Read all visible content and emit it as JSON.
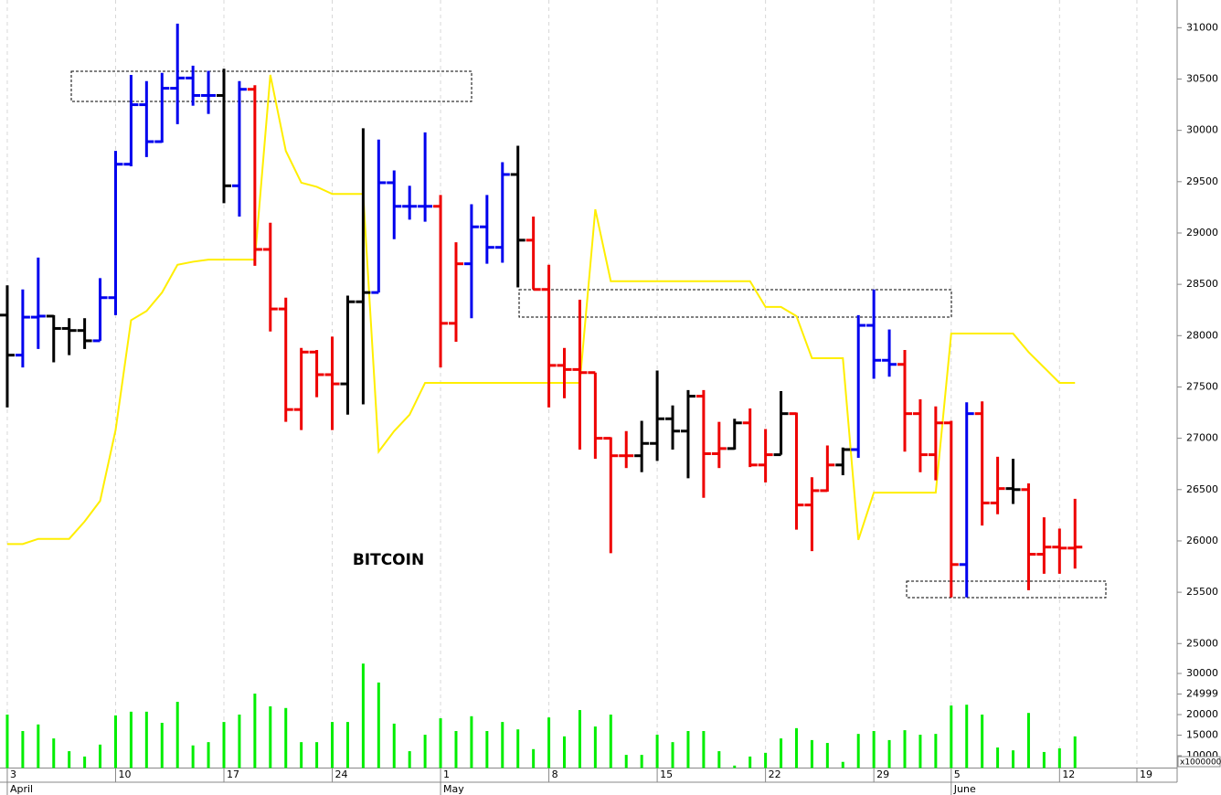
{
  "chart_data": {
    "type": "ohlc",
    "title": "BITCOIN",
    "open": [
      28200,
      27810,
      28180,
      28190,
      28070,
      28050,
      27950,
      28370,
      29670,
      30250,
      29890,
      30410,
      30510,
      30340,
      30340,
      29460,
      30400,
      28840,
      28260,
      27280,
      27840,
      27620,
      27530,
      28330,
      28420,
      29490,
      29260,
      29260,
      29260,
      28120,
      28700,
      29060,
      28860,
      29570,
      28930,
      28450,
      27710,
      27670,
      27640,
      27000,
      26830,
      26830,
      26950,
      27190,
      27070,
      27410,
      26850,
      26900,
      27150,
      26740,
      26840,
      27240,
      26350,
      26490,
      26740,
      26890,
      28100,
      27760,
      27720,
      27240,
      26840,
      27150,
      25770,
      27240,
      26370,
      26510,
      26500,
      25870,
      25940,
      25930
    ],
    "high": [
      28490,
      28450,
      28760,
      28200,
      28170,
      28170,
      28560,
      29800,
      30540,
      30480,
      30560,
      31040,
      30630,
      30580,
      30600,
      30480,
      30440,
      29100,
      28370,
      27880,
      27860,
      27990,
      28390,
      30020,
      29910,
      29610,
      29460,
      29980,
      29370,
      28910,
      29280,
      29370,
      29690,
      29850,
      29160,
      28690,
      27880,
      28350,
      27640,
      27010,
      27070,
      27170,
      27660,
      27320,
      27470,
      27470,
      27160,
      27190,
      27290,
      27090,
      27460,
      27250,
      26620,
      26930,
      26910,
      28200,
      28450,
      28060,
      27860,
      27380,
      27310,
      27170,
      27350,
      27360,
      26820,
      26800,
      26560,
      26230,
      26120,
      26410
    ],
    "low": [
      27300,
      27690,
      27870,
      27740,
      27810,
      27870,
      27950,
      28200,
      29650,
      29740,
      29880,
      30060,
      30240,
      30160,
      29290,
      29160,
      28680,
      28040,
      27160,
      27080,
      27400,
      27080,
      27230,
      27330,
      28420,
      28940,
      29130,
      29110,
      27690,
      27940,
      28170,
      28700,
      28710,
      28470,
      28450,
      27300,
      27390,
      26890,
      26800,
      25880,
      26710,
      26670,
      26780,
      26890,
      26610,
      26420,
      26710,
      26890,
      26720,
      26570,
      26840,
      26110,
      25900,
      26480,
      26640,
      26810,
      27580,
      27600,
      26870,
      26670,
      26590,
      25450,
      25450,
      26150,
      26260,
      26360,
      25520,
      25680,
      25680,
      25730
    ],
    "close": [
      27810,
      28180,
      28190,
      28070,
      28050,
      27950,
      28370,
      29670,
      30250,
      29890,
      30410,
      30510,
      30340,
      30340,
      29460,
      30400,
      28840,
      28260,
      27280,
      27840,
      27620,
      27530,
      28330,
      28420,
      29490,
      29260,
      29260,
      29260,
      28120,
      28700,
      29060,
      28860,
      29570,
      28930,
      28450,
      27710,
      27670,
      27640,
      27000,
      26830,
      26830,
      26950,
      27190,
      27070,
      27410,
      26850,
      26900,
      27150,
      26740,
      26840,
      27240,
      26350,
      26490,
      26740,
      26890,
      28100,
      27760,
      27720,
      27240,
      26840,
      27150,
      25770,
      27240,
      26370,
      26510,
      26500,
      25870,
      25940,
      25930,
      25940
    ],
    "colors": [
      "#000000",
      "#0000ee",
      "#0000ee",
      "#000000",
      "#000000",
      "#000000",
      "#0000ee",
      "#0000ee",
      "#0000ee",
      "#0000ee",
      "#0000ee",
      "#0000ee",
      "#0000ee",
      "#0000ee",
      "#000000",
      "#0000ee",
      "#ee0000",
      "#ee0000",
      "#ee0000",
      "#ee0000",
      "#ee0000",
      "#ee0000",
      "#000000",
      "#000000",
      "#0000ee",
      "#0000ee",
      "#0000ee",
      "#0000ee",
      "#ee0000",
      "#ee0000",
      "#0000ee",
      "#0000ee",
      "#0000ee",
      "#000000",
      "#ee0000",
      "#ee0000",
      "#ee0000",
      "#ee0000",
      "#ee0000",
      "#ee0000",
      "#ee0000",
      "#000000",
      "#000000",
      "#000000",
      "#000000",
      "#ee0000",
      "#ee0000",
      "#000000",
      "#ee0000",
      "#ee0000",
      "#000000",
      "#ee0000",
      "#ee0000",
      "#ee0000",
      "#000000",
      "#0000ee",
      "#0000ee",
      "#0000ee",
      "#ee0000",
      "#ee0000",
      "#ee0000",
      "#ee0000",
      "#0000ee",
      "#ee0000",
      "#ee0000",
      "#000000",
      "#ee0000",
      "#ee0000",
      "#ee0000",
      "#ee0000"
    ],
    "line": {
      "color": "#ffee00",
      "values": [
        25970,
        25970,
        26020,
        26020,
        26020,
        26190,
        26390,
        27080,
        28150,
        28240,
        28420,
        28690,
        28720,
        28740,
        28740,
        28740,
        28740,
        30540,
        29800,
        29490,
        29450,
        29380,
        29380,
        29380,
        26870,
        27070,
        27230,
        27540,
        27540,
        27540,
        27540,
        27540,
        27540,
        27540,
        27540,
        27540,
        27540,
        27540,
        29230,
        28530,
        28530,
        28530,
        28530,
        28530,
        28530,
        28530,
        28530,
        28530,
        28530,
        28280,
        28280,
        28190,
        27780,
        27780,
        27780,
        26010,
        26470,
        26470,
        26470,
        26470,
        26470,
        28020,
        28020,
        28020,
        28020,
        28020,
        27840,
        27690,
        27540,
        27540
      ]
    },
    "volume": {
      "type": "bar",
      "color": "#00ee00",
      "unit_label": "x1000000",
      "values": [
        20000,
        16000,
        17600,
        14200,
        11100,
        9800,
        12700,
        19800,
        20700,
        20700,
        18000,
        23100,
        12500,
        13300,
        18200,
        20000,
        25100,
        22000,
        21600,
        13300,
        13300,
        18200,
        18200,
        32400,
        27800,
        17800,
        11100,
        15100,
        19100,
        16000,
        19600,
        16000,
        18200,
        16400,
        11600,
        19300,
        14700,
        21100,
        17100,
        20000,
        10200,
        10200,
        15100,
        13300,
        16000,
        16000,
        11100,
        7600,
        9800,
        10700,
        14200,
        16700,
        13800,
        13100,
        8500,
        15300,
        16000,
        13800,
        16200,
        15100,
        15300,
        22200,
        22400,
        20000,
        12000,
        11300,
        20400,
        10900,
        11800,
        14700
      ],
      "ylim": [
        7000,
        33000
      ],
      "yticks": [
        10000,
        15000,
        20000,
        24999,
        30000
      ]
    },
    "ylim": [
      24860,
      31270
    ],
    "yticks": [
      25000,
      25500,
      26000,
      26500,
      27000,
      27500,
      28000,
      28500,
      29000,
      29500,
      30000,
      30500,
      31000
    ],
    "xlim": [
      -0.47,
      75.6
    ],
    "xticks": [
      {
        "value": 0,
        "label": "3"
      },
      {
        "value": 7,
        "label": "10"
      },
      {
        "value": 14,
        "label": "17"
      },
      {
        "value": 21,
        "label": "24"
      },
      {
        "value": 28,
        "label": "1"
      },
      {
        "value": 35,
        "label": "8"
      },
      {
        "value": 42,
        "label": "15"
      },
      {
        "value": 49,
        "label": "22"
      },
      {
        "value": 56,
        "label": "29"
      },
      {
        "value": 61,
        "label": "5"
      },
      {
        "value": 68,
        "label": "12"
      },
      {
        "value": 73,
        "label": "19"
      }
    ],
    "month_ticks": [
      {
        "value": 0,
        "label": "April"
      },
      {
        "value": 28,
        "label": "May"
      },
      {
        "value": 61,
        "label": "June"
      }
    ],
    "grid": true
  }
}
